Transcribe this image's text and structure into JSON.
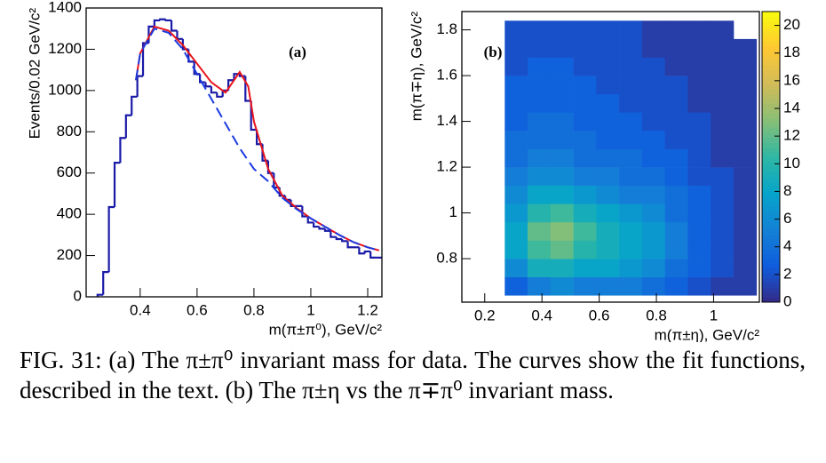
{
  "chart_data": [
    {
      "type": "histogram",
      "label": "(a)",
      "xlabel": "m(π±π⁰), GeV/c²",
      "ylabel": "Events/0.02 GeV/c²",
      "color": "#1a1aa8",
      "bins": [
        0.25,
        0.27,
        0.29,
        0.31,
        0.33,
        0.35,
        0.37,
        0.39,
        0.41,
        0.43,
        0.45,
        0.47,
        0.49,
        0.51,
        0.53,
        0.55,
        0.57,
        0.59,
        0.61,
        0.63,
        0.65,
        0.67,
        0.69,
        0.71,
        0.73,
        0.75,
        0.77,
        0.79,
        0.81,
        0.83,
        0.85,
        0.87,
        0.89,
        0.91,
        0.93,
        0.95,
        0.97,
        0.99,
        1.01,
        1.03,
        1.05,
        1.07,
        1.09,
        1.11,
        1.13,
        1.15,
        1.17,
        1.19,
        1.21,
        1.23,
        1.25
      ],
      "values": [
        10,
        120,
        435,
        650,
        770,
        880,
        970,
        1070,
        1230,
        1310,
        1340,
        1345,
        1340,
        1290,
        1250,
        1200,
        1140,
        1080,
        1040,
        1020,
        990,
        970,
        1000,
        1050,
        1080,
        1070,
        950,
        810,
        740,
        660,
        600,
        530,
        490,
        470,
        440,
        440,
        390,
        360,
        340,
        330,
        320,
        290,
        280,
        270,
        240,
        240,
        210,
        220,
        190,
        190
      ],
      "fits": [
        {
          "color": "#e8141c",
          "dash": false,
          "x": [
            0.385,
            0.4,
            0.45,
            0.5,
            0.55,
            0.6,
            0.65,
            0.7,
            0.72,
            0.75,
            0.78,
            0.8,
            0.85,
            0.9,
            0.95,
            1,
            1.05,
            1.1,
            1.15,
            1.2,
            1.24
          ],
          "values": [
            1050,
            1180,
            1310,
            1290,
            1220,
            1130,
            1040,
            990,
            1030,
            1090,
            1020,
            850,
            620,
            490,
            430,
            380,
            340,
            300,
            265,
            240,
            225
          ]
        },
        {
          "color": "#1a3ae0",
          "dash": true,
          "x": [
            0.385,
            0.4,
            0.45,
            0.5,
            0.55,
            0.6,
            0.65,
            0.7,
            0.75,
            0.8,
            0.85,
            0.9,
            0.95,
            1,
            1.05,
            1.1,
            1.15,
            1.2,
            1.24
          ],
          "values": [
            1050,
            1180,
            1300,
            1280,
            1200,
            1080,
            960,
            840,
            720,
            620,
            560,
            480,
            425,
            380,
            340,
            300,
            265,
            240,
            225
          ]
        }
      ],
      "xlim": [
        0.21,
        1.25
      ],
      "xticks": [
        0.4,
        0.6,
        0.8,
        1,
        1.2
      ],
      "ylim": [
        0,
        1400
      ],
      "yticks": [
        0,
        200,
        400,
        600,
        800,
        1000,
        1200,
        1400
      ]
    },
    {
      "type": "heatmap",
      "label": "(b)",
      "xlabel": "m(π±η), GeV/c²",
      "ylabel": "m(π∓η), GeV/c²",
      "x_edges": [
        0.27,
        0.35,
        0.43,
        0.51,
        0.59,
        0.67,
        0.75,
        0.83,
        0.91,
        0.99,
        1.07,
        1.15
      ],
      "y_edges": [
        0.64,
        0.72,
        0.8,
        0.88,
        0.96,
        1.04,
        1.12,
        1.2,
        1.28,
        1.36,
        1.44,
        1.52,
        1.6,
        1.68,
        1.76,
        1.84
      ],
      "z": [
        [
          3,
          5,
          6,
          5,
          5,
          5,
          4,
          3,
          2,
          1,
          1
        ],
        [
          6,
          9,
          9,
          8,
          8,
          7,
          6,
          4,
          3,
          2,
          1
        ],
        [
          8,
          11,
          12,
          10,
          9,
          8,
          7,
          5,
          3,
          2,
          1
        ],
        [
          8,
          12,
          13,
          11,
          9,
          8,
          7,
          5,
          3,
          2,
          1
        ],
        [
          7,
          10,
          11,
          9,
          8,
          7,
          6,
          4,
          3,
          2,
          1
        ],
        [
          6,
          8,
          8,
          7,
          6,
          5,
          5,
          4,
          3,
          2,
          1
        ],
        [
          5,
          6,
          6,
          5,
          5,
          4,
          4,
          3,
          2,
          2,
          1
        ],
        [
          4,
          5,
          5,
          4,
          4,
          4,
          3,
          3,
          2,
          1,
          1
        ],
        [
          4,
          4,
          4,
          4,
          3,
          3,
          3,
          2,
          2,
          1,
          1
        ],
        [
          3,
          4,
          4,
          3,
          3,
          3,
          2,
          2,
          2,
          1,
          1
        ],
        [
          3,
          3,
          3,
          3,
          3,
          2,
          2,
          2,
          1,
          1,
          1
        ],
        [
          3,
          3,
          3,
          3,
          2,
          2,
          2,
          2,
          1,
          1,
          1
        ],
        [
          2,
          3,
          3,
          2,
          2,
          2,
          2,
          1,
          1,
          1,
          1
        ],
        [
          2,
          2,
          2,
          2,
          2,
          2,
          1,
          1,
          1,
          1,
          1
        ],
        [
          2,
          2,
          2,
          2,
          2,
          2,
          1,
          1,
          1,
          1,
          0
        ]
      ],
      "colormap": [
        "#352a87",
        "#0f5cdd",
        "#1481d6",
        "#06a4ca",
        "#2eb7a4",
        "#87bf77",
        "#d1bb59",
        "#fec832",
        "#f9fb0e"
      ],
      "zlim": [
        0,
        21
      ],
      "zticks": [
        0,
        2,
        4,
        6,
        8,
        10,
        12,
        14,
        16,
        18,
        20
      ],
      "xlim": [
        0.12,
        1.16
      ],
      "xticks": [
        0.2,
        0.4,
        0.6,
        0.8,
        1
      ],
      "ylim": [
        0.61,
        1.88
      ],
      "yticks": [
        0.8,
        1,
        1.2,
        1.4,
        1.6,
        1.8
      ]
    }
  ],
  "caption": "FIG. 31: (a) The π±π⁰ invariant mass for data. The curves show the fit functions, described in the text. (b) The π±η vs the π∓π⁰ invariant mass."
}
